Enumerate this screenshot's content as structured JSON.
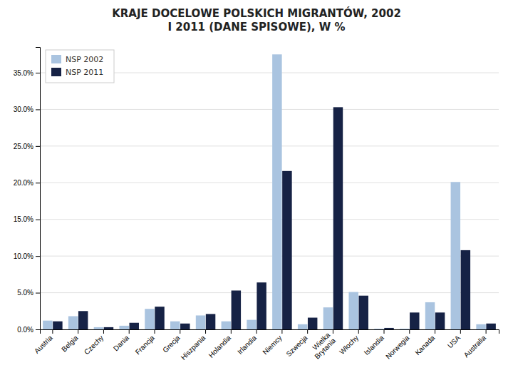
{
  "chart_data": {
    "type": "bar",
    "title": "KRAJE DOCELOWE POLSKICH MIGRANTÓW, 2002\nI 2011 (DANE SPISOWE), W %",
    "categories": [
      "Austria",
      "Belgia",
      "Czechy",
      "Dania",
      "Francja",
      "Grecja",
      "Hiszpania",
      "Holandia",
      "Irlandia",
      "Niemcy",
      "Szwecja",
      "Wielka\nBrytania",
      "Włochy",
      "Islandia",
      "Norwegia",
      "Kanada",
      "USA",
      "Australia"
    ],
    "series": [
      {
        "name": "NSP 2002",
        "color": "#aac4e0",
        "values": [
          1.2,
          1.8,
          0.3,
          0.5,
          2.8,
          1.1,
          1.9,
          1.1,
          1.3,
          37.5,
          0.7,
          3.0,
          5.1,
          0.1,
          0.1,
          3.7,
          20.1,
          0.7
        ]
      },
      {
        "name": "NSP 2011",
        "color": "#162245",
        "values": [
          1.1,
          2.5,
          0.3,
          0.9,
          3.1,
          0.8,
          2.1,
          5.3,
          6.4,
          21.6,
          1.6,
          30.3,
          4.6,
          0.2,
          2.3,
          2.3,
          10.8,
          0.8
        ]
      }
    ],
    "ylim": [
      0,
      38.5
    ],
    "yticks": [
      {
        "value": 0.0,
        "label": "0.0%"
      },
      {
        "value": 5.0,
        "label": "5.0%"
      },
      {
        "value": 10.0,
        "label": "10.0%"
      },
      {
        "value": 15.0,
        "label": "15.0%"
      },
      {
        "value": 20.0,
        "label": "20.0%"
      },
      {
        "value": 25.0,
        "label": "25.0%"
      },
      {
        "value": 30.0,
        "label": "30.0%"
      },
      {
        "value": 35.0,
        "label": "35.0%"
      }
    ],
    "grid": true,
    "legend": "upper-left"
  }
}
